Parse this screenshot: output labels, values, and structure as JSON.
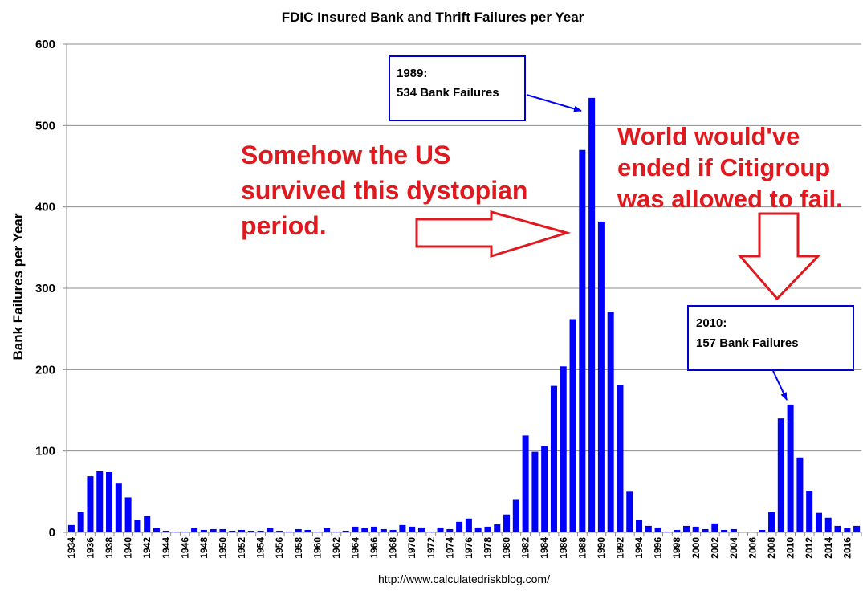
{
  "chart_data": {
    "type": "bar",
    "title": "FDIC Insured Bank and Thrift Failures per Year",
    "xlabel": "",
    "ylabel": "Bank Failures per Year",
    "ylim": [
      0,
      600
    ],
    "yticks": [
      0,
      100,
      200,
      300,
      400,
      500,
      600
    ],
    "grid": true,
    "legend": "none",
    "bar_color": "#0000FF",
    "x": [
      1934,
      1935,
      1936,
      1937,
      1938,
      1939,
      1940,
      1941,
      1942,
      1943,
      1944,
      1945,
      1946,
      1947,
      1948,
      1949,
      1950,
      1951,
      1952,
      1953,
      1954,
      1955,
      1956,
      1957,
      1958,
      1959,
      1960,
      1961,
      1962,
      1963,
      1964,
      1965,
      1966,
      1967,
      1968,
      1969,
      1970,
      1971,
      1972,
      1973,
      1974,
      1975,
      1976,
      1977,
      1978,
      1979,
      1980,
      1981,
      1982,
      1983,
      1984,
      1985,
      1986,
      1987,
      1988,
      1989,
      1990,
      1991,
      1992,
      1993,
      1994,
      1995,
      1996,
      1997,
      1998,
      1999,
      2000,
      2001,
      2002,
      2003,
      2004,
      2005,
      2006,
      2007,
      2008,
      2009,
      2010,
      2011,
      2012,
      2013,
      2014,
      2015,
      2016,
      2017
    ],
    "values": [
      9,
      25,
      69,
      75,
      74,
      60,
      43,
      15,
      20,
      5,
      2,
      1,
      1,
      5,
      3,
      4,
      4,
      2,
      3,
      2,
      2,
      5,
      2,
      1,
      4,
      3,
      1,
      5,
      1,
      2,
      7,
      5,
      7,
      4,
      3,
      9,
      7,
      6,
      1,
      6,
      4,
      13,
      17,
      6,
      7,
      10,
      22,
      40,
      119,
      99,
      106,
      180,
      204,
      262,
      470,
      534,
      382,
      271,
      181,
      50,
      15,
      8,
      6,
      1,
      3,
      8,
      7,
      4,
      11,
      3,
      4,
      0,
      0,
      3,
      25,
      140,
      157,
      92,
      51,
      24,
      18,
      8,
      5,
      8
    ],
    "xtick_labels": [
      "1934",
      "1936",
      "1938",
      "1940",
      "1942",
      "1944",
      "1946",
      "1948",
      "1950",
      "1952",
      "1954",
      "1956",
      "1958",
      "1960",
      "1962",
      "1964",
      "1966",
      "1968",
      "1970",
      "1972",
      "1974",
      "1976",
      "1978",
      "1980",
      "1982",
      "1984",
      "1986",
      "1988",
      "1990",
      "1992",
      "1994",
      "1996",
      "1998",
      "2000",
      "2002",
      "2004",
      "2006",
      "2008",
      "2010",
      "2012",
      "2014",
      "2016"
    ],
    "annotations": [
      {
        "lines": [
          "1989:",
          "534 Bank Failures"
        ],
        "points_to": 1989
      },
      {
        "lines": [
          "2010:",
          "157 Bank Failures"
        ],
        "points_to": 2010
      },
      {
        "lines": [
          "Somehow the US",
          "survived this dystopian",
          "period."
        ],
        "color": "#E0191F"
      },
      {
        "lines": [
          "World would've",
          "ended if Citigroup",
          "was allowed to fail."
        ],
        "color": "#E0191F"
      }
    ],
    "source": "http://www.calculatedriskblog.com/"
  }
}
